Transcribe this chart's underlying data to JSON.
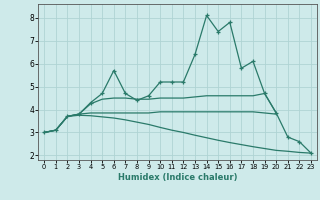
{
  "title": "",
  "xlabel": "Humidex (Indice chaleur)",
  "ylim": [
    1.8,
    8.6
  ],
  "xlim": [
    -0.5,
    23.5
  ],
  "bg_color": "#ceeaea",
  "grid_color": "#afd4d4",
  "line_color": "#2a7a6a",
  "yticks": [
    2,
    3,
    4,
    5,
    6,
    7,
    8
  ],
  "xticks": [
    0,
    1,
    2,
    3,
    4,
    5,
    6,
    7,
    8,
    9,
    10,
    11,
    12,
    13,
    14,
    15,
    16,
    17,
    18,
    19,
    20,
    21,
    22,
    23
  ],
  "lines": [
    {
      "y": [
        3.0,
        3.1,
        3.7,
        3.8,
        4.3,
        4.7,
        5.7,
        4.7,
        4.4,
        4.6,
        5.2,
        5.2,
        5.2,
        6.4,
        8.1,
        7.4,
        7.8,
        5.8,
        6.1,
        4.7,
        3.85,
        2.8,
        2.6,
        2.1
      ],
      "marker": true
    },
    {
      "y": [
        3.0,
        3.1,
        3.7,
        3.8,
        4.25,
        4.45,
        4.5,
        4.5,
        4.45,
        4.45,
        4.5,
        4.5,
        4.5,
        4.55,
        4.6,
        4.6,
        4.6,
        4.6,
        4.6,
        4.7,
        3.85,
        null,
        null,
        null
      ],
      "marker": false
    },
    {
      "y": [
        3.0,
        3.1,
        3.7,
        3.8,
        3.85,
        3.85,
        3.85,
        3.85,
        3.85,
        3.85,
        3.9,
        3.9,
        3.9,
        3.9,
        3.9,
        3.9,
        3.9,
        3.9,
        3.9,
        3.85,
        3.8,
        null,
        null,
        null
      ],
      "marker": false
    },
    {
      "y": [
        3.0,
        3.1,
        3.7,
        3.75,
        3.73,
        3.68,
        3.63,
        3.55,
        3.45,
        3.35,
        3.22,
        3.1,
        3.0,
        2.88,
        2.77,
        2.66,
        2.56,
        2.47,
        2.38,
        2.3,
        2.22,
        2.18,
        2.13,
        2.1
      ],
      "marker": false
    }
  ]
}
